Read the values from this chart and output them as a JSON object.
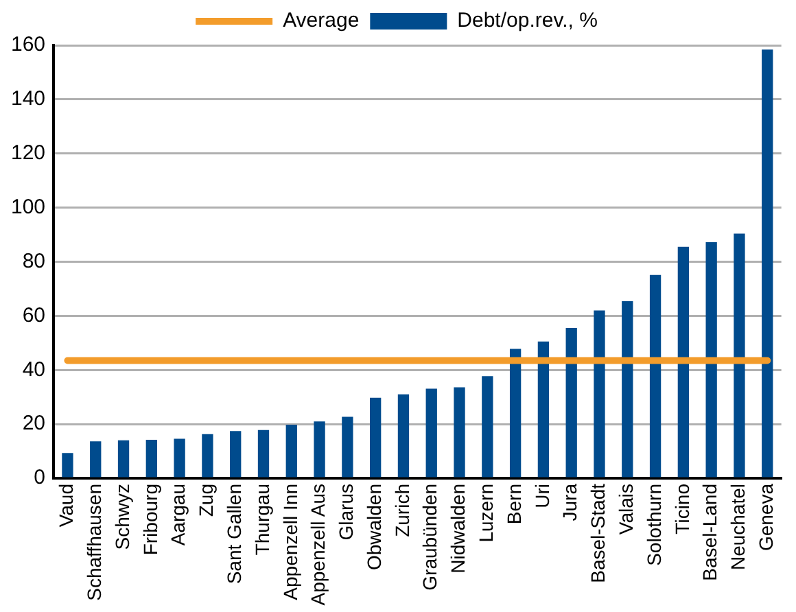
{
  "chart_data": {
    "type": "bar",
    "categories": [
      "Vaud",
      "Schaffhausen",
      "Schwyz",
      "Fribourg",
      "Aargau",
      "Zug",
      "Sant Gallen",
      "Thurgau",
      "Appenzell Inn",
      "Appenzell Aus",
      "Glarus",
      "Obwalden",
      "Zurich",
      "Graubünden",
      "Nidwalden",
      "Luzern",
      "Bern",
      "Uri",
      "Jura",
      "Basel-Stadt",
      "Valais",
      "Solothurn",
      "Ticino",
      "Basel-Land",
      "Neuchatel",
      "Geneva"
    ],
    "series": [
      {
        "name": "Debt/op.rev., %",
        "color": "#004b8d",
        "values": [
          9.3,
          13.6,
          14,
          14.2,
          14.6,
          16.3,
          17.4,
          17.8,
          19.8,
          21,
          22.7,
          29.7,
          31,
          33.1,
          33.6,
          37.7,
          47.8,
          50.5,
          55.5,
          62,
          65.4,
          75.1,
          85.5,
          87.2,
          90.4,
          158.4
        ]
      },
      {
        "name": "Average",
        "type": "line",
        "color": "#f39c2b",
        "values": [
          43.5,
          43.5,
          43.5,
          43.5,
          43.5,
          43.5,
          43.5,
          43.5,
          43.5,
          43.5,
          43.5,
          43.5,
          43.5,
          43.5,
          43.5,
          43.5,
          43.5,
          43.5,
          43.5,
          43.5,
          43.5,
          43.5,
          43.5,
          43.5,
          43.5,
          43.5
        ]
      }
    ],
    "ylim": [
      0,
      160
    ],
    "yticks": [
      0,
      20,
      40,
      60,
      80,
      100,
      120,
      140,
      160
    ],
    "grid": "y",
    "legend": "top"
  }
}
